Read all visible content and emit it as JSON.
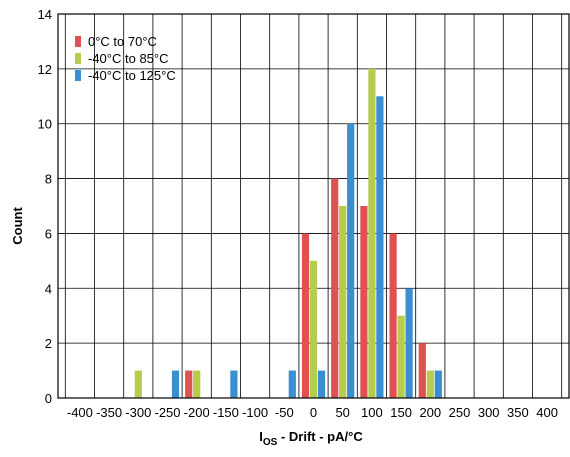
{
  "chart_data": {
    "type": "bar",
    "title": "",
    "xlabel_main": "I",
    "xlabel_sub": "OS",
    "xlabel_rest": " - Drift - pA/°C",
    "ylabel": "Count",
    "ylim": [
      0,
      14
    ],
    "yticks": [
      0,
      2,
      4,
      6,
      8,
      10,
      12,
      14
    ],
    "categories": [
      -400,
      -350,
      -300,
      -250,
      -200,
      -150,
      -100,
      -50,
      0,
      50,
      100,
      150,
      200,
      250,
      300,
      350,
      400
    ],
    "category_labels": [
      "-400",
      "-350",
      "-300",
      "-250",
      "-200",
      "-150",
      "-100",
      "-50",
      "0",
      "50",
      "100",
      "150",
      "200",
      "250",
      "300",
      "350",
      "400"
    ],
    "grid": true,
    "legend_position": "top-left",
    "series": [
      {
        "name": "0°C to 70°C",
        "color": "#e05252",
        "values": [
          0,
          0,
          0,
          0,
          1,
          0,
          0,
          0,
          6,
          8,
          7,
          6,
          2,
          0,
          0,
          0,
          0
        ]
      },
      {
        "name": "-40°C to 85°C",
        "color": "#b5cc4e",
        "values": [
          0,
          0,
          1,
          0,
          1,
          0,
          0,
          0,
          5,
          7,
          12,
          3,
          1,
          0,
          0,
          0,
          0
        ]
      },
      {
        "name": "-40°C to 125°C",
        "color": "#3a8fd0",
        "values": [
          0,
          0,
          0,
          1,
          0,
          1,
          0,
          1,
          1,
          10,
          11,
          4,
          1,
          0,
          0,
          0,
          0
        ]
      }
    ]
  }
}
